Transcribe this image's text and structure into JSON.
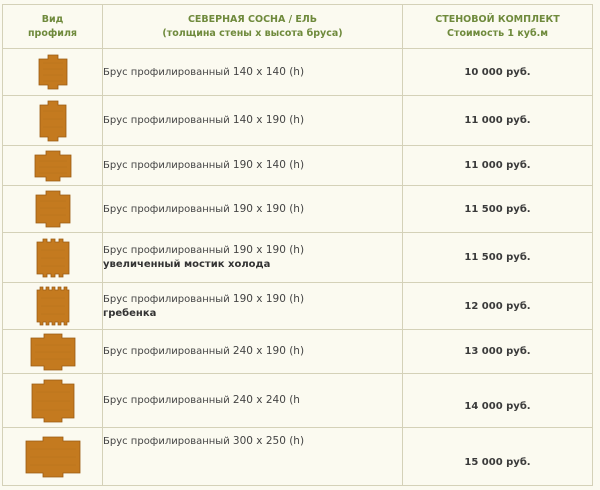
{
  "header": {
    "col1_line1": "Вид",
    "col1_line2": "профиля",
    "col2_line1": "СЕВЕРНАЯ СОСНА / ЕЛЬ",
    "col2_line2": "(толщина стены х высота бруса)",
    "col3_line1": "СТЕНОВОЙ КОМПЛЕКТ",
    "col3_line2": "Стоимость 1 куб.м"
  },
  "colors": {
    "header_text": "#6f8a3c",
    "wood_fill": "#c47a1f",
    "wood_dark": "#9a5a12",
    "border": "#d4d1b8",
    "background": "#fbfaf0"
  },
  "rows": [
    {
      "label": "Брус профилированный",
      "size": "140 х 140 (h)",
      "note": "",
      "price": "10 000 руб.",
      "icon": "profile-140x140-icon"
    },
    {
      "label": "Брус профилированный",
      "size": "140 х 190 (h)",
      "note": "",
      "price": "11 000 руб.",
      "icon": "profile-140x190-icon"
    },
    {
      "label": "Брус профилированный",
      "size": "190 х 140 (h)",
      "note": "",
      "price": "11 000 руб.",
      "icon": "profile-190x140-icon"
    },
    {
      "label": "Брус профилированный",
      "size": "190 х 190 (h)",
      "note": "",
      "price": "11 500 руб.",
      "icon": "profile-190x190-icon"
    },
    {
      "label": "Брус профилированный",
      "size": "190 х 190 (h)",
      "note": "увеличенный мостик холода",
      "price": "11 500 руб.",
      "icon": "profile-190x190-bridge-icon"
    },
    {
      "label": "Брус профилированный",
      "size": "190 х 190 (h)",
      "note": "гребенка",
      "price": "12 000 руб.",
      "icon": "profile-190x190-comb-icon"
    },
    {
      "label": "Брус профилированный",
      "size": "240 х 190 (h)",
      "note": "",
      "price": "13 000 руб.",
      "icon": "profile-240x190-icon"
    },
    {
      "label": "Брус профилированный",
      "size": "240 х 240 (h",
      "note": "",
      "price": "14 000 руб.",
      "icon": "profile-240x240-icon"
    },
    {
      "label": "Брус профилированный",
      "size": "300 х 250 (h)",
      "note": "",
      "price": "15 000 руб.",
      "icon": "profile-300x250-icon"
    }
  ]
}
